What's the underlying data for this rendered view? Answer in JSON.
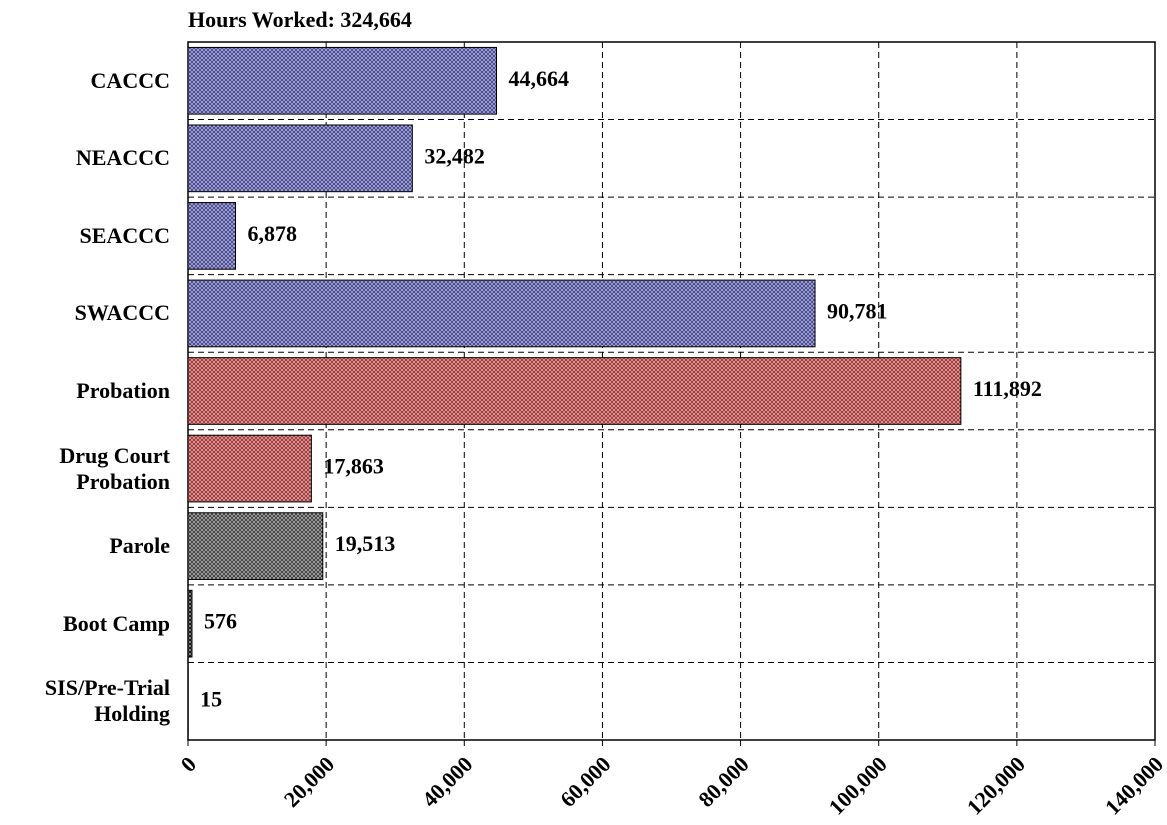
{
  "chart_data": {
    "type": "bar",
    "orientation": "horizontal",
    "title": "Hours Worked:  324,664",
    "categories": [
      "CACCC",
      "NEACCC",
      "SEACCC",
      "SWACCC",
      "Probation",
      "Drug Court Probation",
      "Parole",
      "Boot Camp",
      "SIS/Pre-Trial Holding"
    ],
    "values": [
      44664,
      32482,
      6878,
      90781,
      111892,
      17863,
      19513,
      576,
      15
    ],
    "value_labels": [
      "44,664",
      "32,482",
      "6,878",
      "90,781",
      "111,892",
      "17,863",
      "19,513",
      "576",
      "15"
    ],
    "colors": [
      "#3b3b8f",
      "#3b3b8f",
      "#3b3b8f",
      "#3b3b8f",
      "#a02828",
      "#a02828",
      "#333333",
      "#000000",
      "#000000"
    ],
    "xlim": [
      0,
      140000
    ],
    "xticks": [
      0,
      {
        "value": 20000,
        "label": "20,000"
      },
      {
        "value": 40000,
        "label": "40,000"
      },
      {
        "value": 60000,
        "label": "60,000"
      },
      {
        "value": 80000,
        "label": "80,000"
      },
      {
        "value": 100000,
        "label": "100,000"
      },
      {
        "value": 120000,
        "label": "120,000"
      },
      {
        "value": 140000,
        "label": "140,000"
      }
    ],
    "grid": true
  }
}
